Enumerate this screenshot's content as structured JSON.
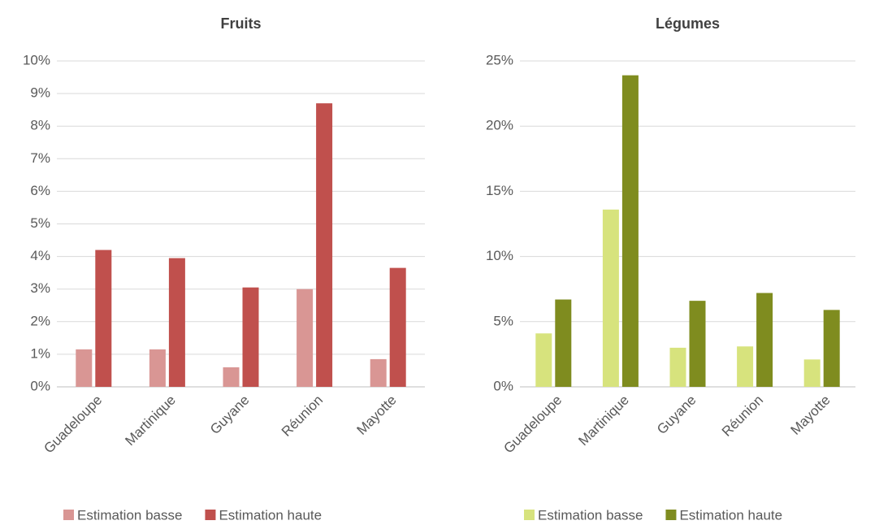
{
  "chart_data": [
    {
      "type": "bar",
      "title": "Fruits",
      "categories": [
        "Guadeloupe",
        "Martinique",
        "Guyane",
        "Réunion",
        "Mayotte"
      ],
      "series": [
        {
          "name": "Estimation basse",
          "color": "#d99694",
          "values": [
            1.15,
            1.15,
            0.6,
            3.0,
            0.85
          ]
        },
        {
          "name": "Estimation haute",
          "color": "#c0504d",
          "values": [
            4.2,
            3.95,
            3.05,
            8.7,
            3.65
          ]
        }
      ],
      "ylim": [
        0,
        10
      ],
      "yticks": [
        {
          "value": 0,
          "label": "0%"
        },
        {
          "value": 1,
          "label": "1%"
        },
        {
          "value": 2,
          "label": "2%"
        },
        {
          "value": 3,
          "label": "3%"
        },
        {
          "value": 4,
          "label": "4%"
        },
        {
          "value": 5,
          "label": "5%"
        },
        {
          "value": 6,
          "label": "6%"
        },
        {
          "value": 7,
          "label": "7%"
        },
        {
          "value": 8,
          "label": "8%"
        },
        {
          "value": 9,
          "label": "9%"
        },
        {
          "value": 10,
          "label": "10%"
        }
      ],
      "grid": true,
      "legend": "bottom"
    },
    {
      "type": "bar",
      "title": "Légumes",
      "categories": [
        "Guadeloupe",
        "Martinique",
        "Guyane",
        "Réunion",
        "Mayotte"
      ],
      "series": [
        {
          "name": "Estimation basse",
          "color": "#d7e37d",
          "values": [
            4.1,
            13.6,
            3.0,
            3.1,
            2.1
          ]
        },
        {
          "name": "Estimation haute",
          "color": "#7f8c1f",
          "values": [
            6.7,
            23.9,
            6.6,
            7.2,
            5.9
          ]
        }
      ],
      "ylim": [
        0,
        25
      ],
      "yticks": [
        {
          "value": 0,
          "label": "0%"
        },
        {
          "value": 5,
          "label": "5%"
        },
        {
          "value": 10,
          "label": "10%"
        },
        {
          "value": 15,
          "label": "15%"
        },
        {
          "value": 20,
          "label": "20%"
        },
        {
          "value": 25,
          "label": "25%"
        }
      ],
      "grid": true,
      "legend": "bottom"
    }
  ]
}
